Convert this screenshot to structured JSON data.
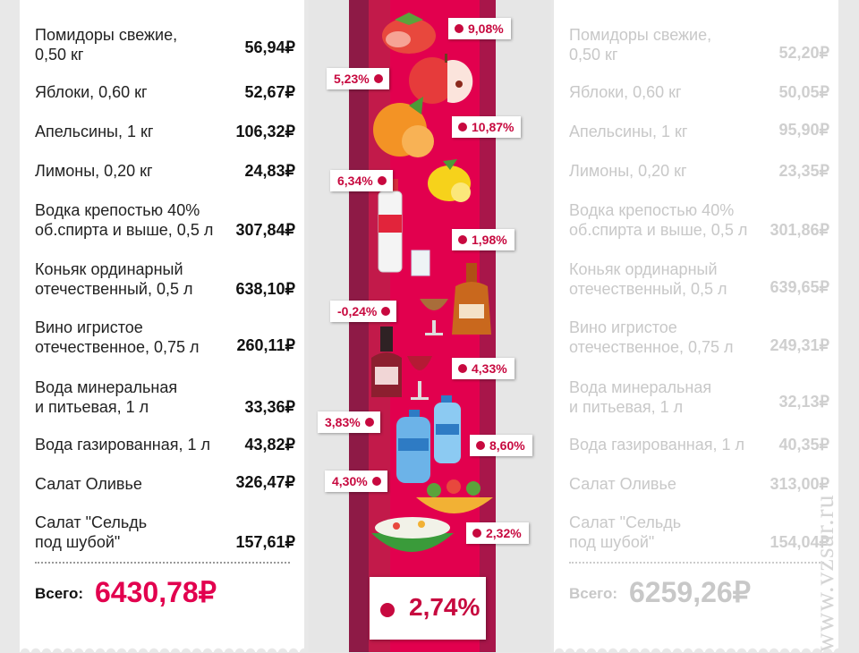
{
  "left_receipt": {
    "items": [
      {
        "name": "Помидоры свежие,\n0,50 кг",
        "price": "56,94₽"
      },
      {
        "name": "Яблоки, 0,60 кг",
        "price": "52,67₽"
      },
      {
        "name": "Апельсины, 1 кг",
        "price": "106,32₽"
      },
      {
        "name": "Лимоны, 0,20 кг",
        "price": "24,83₽"
      },
      {
        "name": "Водка крепостью 40%\nоб.спирта и выше, 0,5 л",
        "price": "307,84₽"
      },
      {
        "name": "Коньяк ординарный\nотечественный, 0,5 л",
        "price": "638,10₽"
      },
      {
        "name": "Вино игристое\nотечественное, 0,75 л",
        "price": "260,11₽"
      },
      {
        "name": "Вода минеральная\nи питьевая, 1 л",
        "price": "33,36₽"
      },
      {
        "name": "Вода газированная, 1 л",
        "price": "43,82₽"
      },
      {
        "name": "Салат Оливье",
        "price": "326,47₽"
      },
      {
        "name": "Салат \"Сельдь\nпод шубой\"",
        "price": "157,61₽"
      }
    ],
    "total_label": "Всего:",
    "total_value": "6430,78₽"
  },
  "right_receipt": {
    "items": [
      {
        "name": "Помидоры свежие,\n0,50 кг",
        "price": "52,20₽"
      },
      {
        "name": "Яблоки, 0,60 кг",
        "price": "50,05₽"
      },
      {
        "name": "Апельсины, 1 кг",
        "price": "95,90₽"
      },
      {
        "name": "Лимоны, 0,20 кг",
        "price": "23,35₽"
      },
      {
        "name": "Водка крепостью 40%\nоб.спирта и выше, 0,5 л",
        "price": "301,86₽"
      },
      {
        "name": "Коньяк ординарный\nотечественный, 0,5 л",
        "price": "639,65₽"
      },
      {
        "name": "Вино игристое\nотечественное, 0,75 л",
        "price": "249,31₽"
      },
      {
        "name": "Вода минеральная\nи питьевая, 1 л",
        "price": "32,13₽"
      },
      {
        "name": "Вода газированная, 1 л",
        "price": "40,35₽"
      },
      {
        "name": "Салат Оливье",
        "price": "313,00₽"
      },
      {
        "name": "Салат \"Сельдь\nпод шубой\"",
        "price": "154,04₽"
      }
    ],
    "total_label": "Всего:",
    "total_value": "6259,26₽"
  },
  "center": {
    "tags": [
      {
        "product": "tomato",
        "text": "9,08%"
      },
      {
        "product": "apple",
        "text": "5,23%"
      },
      {
        "product": "orange",
        "text": "10,87%"
      },
      {
        "product": "lemon",
        "text": "6,34%"
      },
      {
        "product": "vodka",
        "text": "1,98%"
      },
      {
        "product": "cognac",
        "text": "-0,24%"
      },
      {
        "product": "wine",
        "text": "4,33%"
      },
      {
        "product": "mineral-water",
        "text": "3,83%"
      },
      {
        "product": "sparkling-water",
        "text": "8,60%"
      },
      {
        "product": "olivier-salad",
        "text": "4,30%"
      },
      {
        "product": "herring-salad",
        "text": "2,32%"
      }
    ],
    "total_change": "2,74%"
  },
  "watermark": "www.vzsar.ru",
  "colors": {
    "accent": "#c7093f",
    "stripe_dark": "#8e1a46",
    "stripe_mid": "#c21a4a",
    "stripe_bright": "#e2004e"
  },
  "icons": [
    "tomato-icon",
    "apple-icon",
    "orange-icon",
    "lemon-icon",
    "vodka-bottle-icon",
    "shot-glass-icon",
    "cognac-bottle-icon",
    "brandy-glass-icon",
    "wine-bottle-icon",
    "wine-glass-icon",
    "water-bottle-icon",
    "salad-bowl-icon"
  ]
}
